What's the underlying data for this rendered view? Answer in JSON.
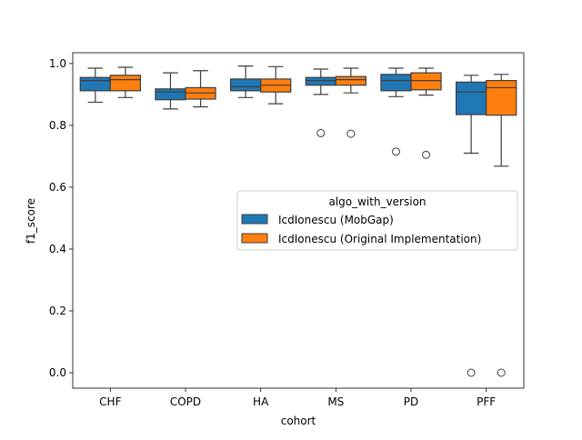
{
  "chart_data": {
    "type": "box",
    "title": "",
    "xlabel": "cohort",
    "ylabel": "f1_score",
    "ylim": [
      -0.05,
      1.035
    ],
    "yticks": [
      0.0,
      0.2,
      0.4,
      0.6,
      0.8,
      1.0
    ],
    "ytick_labels": [
      "0.0",
      "0.2",
      "0.4",
      "0.6",
      "0.8",
      "1.0"
    ],
    "categories": [
      "CHF",
      "COPD",
      "HA",
      "MS",
      "PD",
      "PFF"
    ],
    "grid": false,
    "legend": {
      "title": "algo_with_version",
      "placement": "center-right"
    },
    "series": [
      {
        "name": "IcdIonescu (MobGap)",
        "color": "#1f77b4",
        "boxes": [
          {
            "whislo": 0.875,
            "q1": 0.912,
            "med": 0.945,
            "q3": 0.955,
            "whishi": 0.985,
            "fliers": []
          },
          {
            "whislo": 0.853,
            "q1": 0.883,
            "med": 0.908,
            "q3": 0.918,
            "whishi": 0.97,
            "fliers": []
          },
          {
            "whislo": 0.89,
            "q1": 0.912,
            "med": 0.925,
            "q3": 0.95,
            "whishi": 0.992,
            "fliers": []
          },
          {
            "whislo": 0.9,
            "q1": 0.93,
            "med": 0.945,
            "q3": 0.955,
            "whishi": 0.982,
            "fliers": [
              0.775
            ]
          },
          {
            "whislo": 0.893,
            "q1": 0.912,
            "med": 0.945,
            "q3": 0.965,
            "whishi": 0.985,
            "fliers": [
              0.715
            ]
          },
          {
            "whislo": 0.71,
            "q1": 0.835,
            "med": 0.908,
            "q3": 0.94,
            "whishi": 0.962,
            "fliers": [
              0.0
            ]
          }
        ]
      },
      {
        "name": "IcdIonescu (Original Implementation)",
        "color": "#ff7f0e",
        "boxes": [
          {
            "whislo": 0.89,
            "q1": 0.912,
            "med": 0.948,
            "q3": 0.962,
            "whishi": 0.988,
            "fliers": []
          },
          {
            "whislo": 0.86,
            "q1": 0.885,
            "med": 0.905,
            "q3": 0.922,
            "whishi": 0.977,
            "fliers": []
          },
          {
            "whislo": 0.87,
            "q1": 0.908,
            "med": 0.93,
            "q3": 0.95,
            "whishi": 0.99,
            "fliers": []
          },
          {
            "whislo": 0.905,
            "q1": 0.93,
            "med": 0.948,
            "q3": 0.958,
            "whishi": 0.985,
            "fliers": [
              0.773
            ]
          },
          {
            "whislo": 0.898,
            "q1": 0.915,
            "med": 0.945,
            "q3": 0.97,
            "whishi": 0.985,
            "fliers": [
              0.705
            ]
          },
          {
            "whislo": 0.668,
            "q1": 0.833,
            "med": 0.922,
            "q3": 0.945,
            "whishi": 0.965,
            "fliers": [
              0.0
            ]
          }
        ]
      }
    ]
  }
}
